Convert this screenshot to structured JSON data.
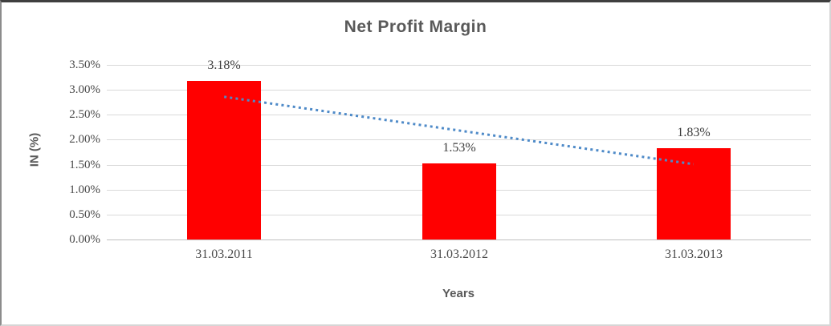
{
  "chart_data": {
    "type": "bar",
    "title": "Net Profit Margin",
    "ylabel": "IN (%)",
    "xlabel": "Years",
    "categories": [
      "31.03.2011",
      "31.03.2012",
      "31.03.2013"
    ],
    "values": [
      3.18,
      1.53,
      1.83
    ],
    "data_labels": [
      "3.18%",
      "1.53%",
      "1.83%"
    ],
    "ylim": [
      0,
      3.5
    ],
    "ytick_step": 0.5,
    "ytick_labels": [
      "0.00%",
      "0.50%",
      "1.00%",
      "1.50%",
      "2.00%",
      "2.50%",
      "3.00%",
      "3.50%"
    ],
    "grid": true,
    "legend": "none",
    "colors": {
      "bar": "#FF0000",
      "trendline": "#4E8AC8",
      "gridline": "#D9D9D9",
      "axis_line": "#BFBFBF",
      "text": "#595959"
    },
    "trendline": {
      "type": "linear",
      "style": "dotted",
      "start_value": 2.86,
      "end_value": 1.51
    }
  }
}
